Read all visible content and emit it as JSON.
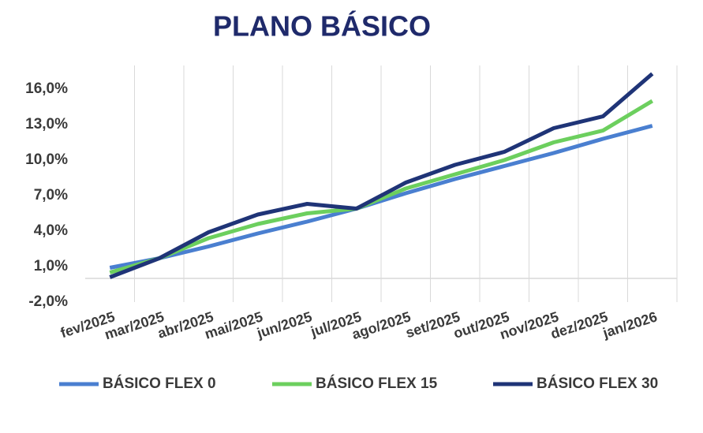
{
  "chart_data": {
    "type": "line",
    "title": "PLANO BÁSICO",
    "categories": [
      "fev/2025",
      "mar/2025",
      "abr/2025",
      "mai/2025",
      "jun/2025",
      "jul/2025",
      "ago/2025",
      "set/2025",
      "out/2025",
      "nov/2025",
      "dez/2025",
      "jan/2026"
    ],
    "series": [
      {
        "name": "BÁSICO FLEX 0",
        "color": "#4a7fd0",
        "values": [
          0.9,
          1.7,
          2.7,
          3.8,
          4.8,
          5.9,
          7.2,
          8.4,
          9.5,
          10.6,
          11.8,
          12.9
        ]
      },
      {
        "name": "BÁSICO FLEX 15",
        "color": "#6ccf5e",
        "values": [
          0.5,
          1.7,
          3.4,
          4.6,
          5.5,
          5.9,
          7.6,
          8.8,
          10.0,
          11.5,
          12.5,
          15.0
        ]
      },
      {
        "name": "BÁSICO FLEX 30",
        "color": "#1f3477",
        "values": [
          0.1,
          1.7,
          3.9,
          5.4,
          6.3,
          5.9,
          8.1,
          9.6,
          10.7,
          12.7,
          13.7,
          17.3
        ]
      }
    ],
    "ylim": [
      -2,
      18
    ],
    "yticks": [
      {
        "value": -2,
        "label": "-2,0%"
      },
      {
        "value": 1,
        "label": "1,0%"
      },
      {
        "value": 4,
        "label": "4,0%"
      },
      {
        "value": 7,
        "label": "7,0%"
      },
      {
        "value": 10,
        "label": "10,0%"
      },
      {
        "value": 13,
        "label": "13,0%"
      },
      {
        "value": 16,
        "label": "16,0%"
      }
    ],
    "grid": true
  }
}
